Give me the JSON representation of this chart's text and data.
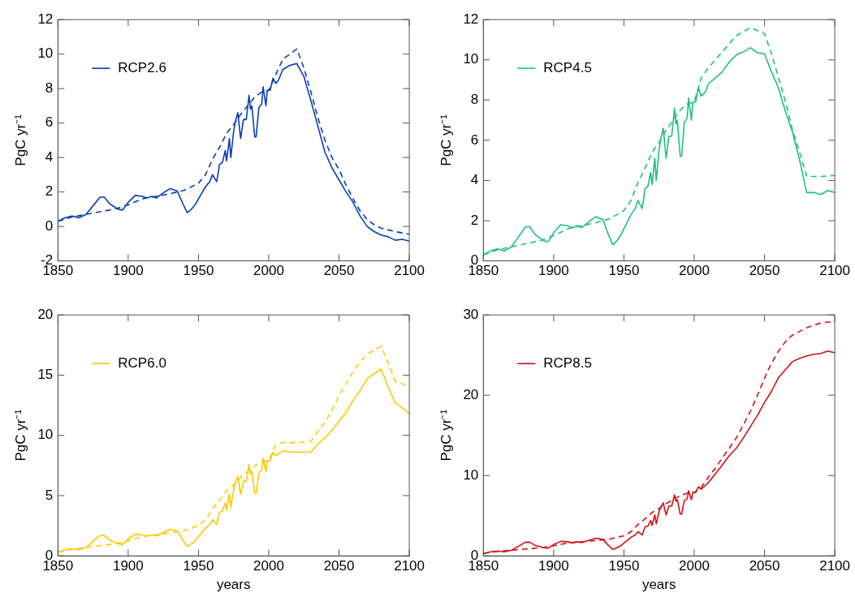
{
  "chart_data": [
    {
      "type": "line",
      "ylabel": "PgC yr⁻¹",
      "xlim": [
        1850,
        2100
      ],
      "xticks": [
        1850,
        1900,
        1950,
        2000,
        2050,
        2100
      ],
      "ylim": [
        -2,
        12
      ],
      "yticks": [
        -2,
        0,
        2,
        4,
        6,
        8,
        10,
        12
      ],
      "legend": "top left",
      "series": [
        {
          "name": "RCP2.6",
          "color": "#0a3cb4",
          "line_style": "solid",
          "x": [
            1850,
            1855,
            1860,
            1865,
            1870,
            1875,
            1880,
            1883,
            1887,
            1893,
            1896,
            1900,
            1905,
            1910,
            1913,
            1917,
            1920,
            1925,
            1928,
            1930,
            1935,
            1939,
            1942,
            1945,
            1948,
            1950,
            1955,
            1958,
            1960,
            1963,
            1965,
            1967,
            1969,
            1970,
            1972,
            1973,
            1975,
            1976,
            1978,
            1980,
            1982,
            1984,
            1986,
            1987,
            1988,
            1990,
            1991,
            1993,
            1995,
            1996,
            1998,
            1999,
            2001,
            2003,
            2005,
            2007,
            2010,
            2015,
            2020,
            2025,
            2030,
            2035,
            2040,
            2045,
            2050,
            2055,
            2060,
            2065,
            2070,
            2075,
            2080,
            2085,
            2090,
            2095,
            2100
          ],
          "values": [
            0.3,
            0.5,
            0.6,
            0.5,
            0.7,
            1.2,
            1.7,
            1.7,
            1.3,
            1.0,
            0.95,
            1.4,
            1.8,
            1.75,
            1.65,
            1.75,
            1.65,
            1.95,
            2.1,
            2.2,
            2.05,
            1.3,
            0.8,
            1.0,
            1.3,
            1.6,
            2.3,
            2.6,
            3.0,
            2.6,
            3.6,
            3.7,
            4.4,
            3.8,
            5.1,
            4.0,
            5.5,
            6.0,
            6.6,
            5.1,
            6.2,
            6.2,
            7.6,
            6.8,
            7.0,
            5.2,
            5.2,
            6.9,
            7.1,
            8.1,
            7.0,
            7.9,
            7.9,
            8.6,
            8.3,
            8.5,
            9.1,
            9.35,
            9.45,
            8.7,
            7.3,
            5.8,
            4.3,
            3.4,
            2.7,
            2.0,
            1.4,
            0.6,
            0.0,
            -0.3,
            -0.5,
            -0.6,
            -0.8,
            -0.75,
            -0.85
          ]
        },
        {
          "color": "#0a3cb4",
          "line_style": "dashed",
          "x": [
            1850,
            1860,
            1870,
            1880,
            1890,
            1900,
            1910,
            1920,
            1930,
            1940,
            1950,
            1955,
            1960,
            1965,
            1970,
            1975,
            1980,
            1985,
            1990,
            1995,
            2000,
            2005,
            2010,
            2015,
            2020,
            2025,
            2030,
            2035,
            2040,
            2045,
            2050,
            2055,
            2060,
            2065,
            2070,
            2075,
            2080,
            2090,
            2100
          ],
          "values": [
            0.3,
            0.55,
            0.7,
            0.85,
            1.0,
            1.25,
            1.6,
            1.75,
            1.9,
            2.1,
            2.5,
            3.0,
            3.9,
            4.6,
            5.4,
            5.9,
            6.5,
            7.0,
            7.5,
            7.8,
            7.9,
            8.8,
            9.7,
            10.0,
            10.3,
            9.2,
            7.8,
            6.3,
            5.0,
            4.0,
            3.3,
            2.4,
            1.6,
            0.9,
            0.4,
            0.1,
            -0.1,
            -0.3,
            -0.45
          ]
        }
      ]
    },
    {
      "type": "line",
      "ylabel": "PgC yr⁻¹",
      "xlim": [
        1850,
        2100
      ],
      "xticks": [
        1850,
        1900,
        1950,
        2000,
        2050,
        2100
      ],
      "ylim": [
        0,
        12
      ],
      "yticks": [
        0,
        2,
        4,
        6,
        8,
        10,
        12
      ],
      "legend": "top left",
      "series": [
        {
          "name": "RCP4.5",
          "color": "#1fbf80",
          "line_style": "solid",
          "x": [
            1850,
            1855,
            1860,
            1865,
            1870,
            1875,
            1880,
            1883,
            1887,
            1893,
            1896,
            1900,
            1905,
            1910,
            1913,
            1917,
            1920,
            1925,
            1928,
            1930,
            1935,
            1939,
            1942,
            1945,
            1948,
            1950,
            1955,
            1958,
            1960,
            1963,
            1965,
            1967,
            1969,
            1970,
            1972,
            1973,
            1975,
            1976,
            1978,
            1980,
            1982,
            1984,
            1986,
            1987,
            1988,
            1990,
            1991,
            1993,
            1995,
            1996,
            1998,
            1999,
            2001,
            2003,
            2005,
            2008,
            2010,
            2015,
            2020,
            2025,
            2030,
            2035,
            2040,
            2045,
            2050,
            2055,
            2060,
            2065,
            2070,
            2075,
            2080,
            2085,
            2090,
            2095,
            2100
          ],
          "values": [
            0.3,
            0.5,
            0.6,
            0.5,
            0.7,
            1.2,
            1.7,
            1.7,
            1.3,
            1.0,
            0.95,
            1.4,
            1.8,
            1.75,
            1.65,
            1.75,
            1.65,
            1.95,
            2.1,
            2.2,
            2.05,
            1.3,
            0.8,
            1.0,
            1.3,
            1.6,
            2.3,
            2.6,
            3.0,
            2.6,
            3.6,
            3.7,
            4.4,
            3.8,
            5.1,
            4.0,
            5.5,
            6.0,
            6.6,
            5.1,
            6.2,
            6.2,
            7.6,
            6.8,
            7.0,
            5.2,
            5.2,
            6.9,
            7.1,
            8.1,
            7.0,
            7.9,
            7.9,
            8.6,
            8.2,
            8.4,
            8.8,
            9.1,
            9.4,
            9.9,
            10.25,
            10.4,
            10.6,
            10.35,
            10.3,
            9.4,
            8.6,
            7.4,
            6.4,
            5.0,
            3.4,
            3.4,
            3.3,
            3.5,
            3.4
          ]
        },
        {
          "color": "#1fbf80",
          "line_style": "dashed",
          "x": [
            1850,
            1860,
            1870,
            1880,
            1890,
            1900,
            1910,
            1920,
            1930,
            1940,
            1950,
            1955,
            1960,
            1965,
            1970,
            1975,
            1980,
            1985,
            1990,
            1995,
            2000,
            2005,
            2010,
            2020,
            2030,
            2040,
            2050,
            2055,
            2060,
            2065,
            2070,
            2075,
            2080,
            2090,
            2100
          ],
          "values": [
            0.3,
            0.55,
            0.7,
            0.85,
            1.0,
            1.25,
            1.6,
            1.75,
            1.9,
            2.1,
            2.5,
            3.0,
            3.9,
            4.6,
            5.4,
            5.9,
            6.5,
            7.0,
            7.5,
            7.8,
            7.9,
            9.1,
            9.6,
            10.4,
            11.2,
            11.6,
            11.3,
            10.3,
            9.1,
            7.9,
            6.5,
            5.4,
            4.2,
            4.2,
            4.25
          ]
        }
      ]
    },
    {
      "type": "line",
      "xlabel": "years",
      "ylabel": "PgC yr⁻¹",
      "xlim": [
        1850,
        2100
      ],
      "xticks": [
        1850,
        1900,
        1950,
        2000,
        2050,
        2100
      ],
      "ylim": [
        0,
        20
      ],
      "yticks": [
        0,
        5,
        10,
        15,
        20
      ],
      "legend": "top left",
      "series": [
        {
          "name": "RCP6.0",
          "color": "#ffc800",
          "line_style": "solid",
          "x": [
            1850,
            1855,
            1860,
            1865,
            1870,
            1875,
            1880,
            1883,
            1887,
            1893,
            1896,
            1900,
            1905,
            1910,
            1913,
            1917,
            1920,
            1925,
            1928,
            1930,
            1935,
            1939,
            1942,
            1945,
            1948,
            1950,
            1955,
            1958,
            1960,
            1963,
            1965,
            1967,
            1969,
            1970,
            1972,
            1973,
            1975,
            1976,
            1978,
            1980,
            1982,
            1984,
            1986,
            1987,
            1988,
            1990,
            1991,
            1993,
            1995,
            1996,
            1998,
            1999,
            2001,
            2003,
            2005,
            2010,
            2020,
            2025,
            2030,
            2035,
            2040,
            2045,
            2050,
            2055,
            2060,
            2065,
            2070,
            2075,
            2080,
            2085,
            2090,
            2095,
            2100
          ],
          "values": [
            0.3,
            0.5,
            0.6,
            0.5,
            0.7,
            1.2,
            1.7,
            1.7,
            1.3,
            1.0,
            0.95,
            1.4,
            1.8,
            1.75,
            1.65,
            1.75,
            1.65,
            1.95,
            2.1,
            2.2,
            2.05,
            1.3,
            0.8,
            1.0,
            1.3,
            1.6,
            2.3,
            2.6,
            3.0,
            2.6,
            3.6,
            3.7,
            4.4,
            3.8,
            5.1,
            4.0,
            5.5,
            6.0,
            6.6,
            5.1,
            6.2,
            6.2,
            7.6,
            6.8,
            7.0,
            5.2,
            5.2,
            6.9,
            7.1,
            8.1,
            7.0,
            7.9,
            7.9,
            8.6,
            8.3,
            8.7,
            8.6,
            8.6,
            8.6,
            9.3,
            9.8,
            10.4,
            11.2,
            11.9,
            12.9,
            13.7,
            14.7,
            15.1,
            15.5,
            14.0,
            12.7,
            12.3,
            11.8
          ]
        },
        {
          "color": "#ffc800",
          "line_style": "dashed",
          "x": [
            1850,
            1860,
            1870,
            1880,
            1890,
            1900,
            1910,
            1920,
            1930,
            1940,
            1950,
            1955,
            1960,
            1965,
            1970,
            1975,
            1980,
            1985,
            1990,
            1995,
            2000,
            2005,
            2010,
            2020,
            2030,
            2035,
            2040,
            2045,
            2050,
            2055,
            2060,
            2065,
            2070,
            2075,
            2080,
            2085,
            2090,
            2095,
            2100
          ],
          "values": [
            0.3,
            0.55,
            0.7,
            0.85,
            1.0,
            1.25,
            1.6,
            1.75,
            1.9,
            2.1,
            2.5,
            3.0,
            3.9,
            4.6,
            5.4,
            5.9,
            6.5,
            7.0,
            7.5,
            7.8,
            7.9,
            9.2,
            9.4,
            9.4,
            9.5,
            10.3,
            11.1,
            12.1,
            13.3,
            14.3,
            15.3,
            16.1,
            16.7,
            17.1,
            17.4,
            16.0,
            14.5,
            14.3,
            14.0
          ]
        }
      ]
    },
    {
      "type": "line",
      "xlabel": "years",
      "ylabel": "PgC yr⁻¹",
      "xlim": [
        1850,
        2100
      ],
      "xticks": [
        1850,
        1900,
        1950,
        2000,
        2050,
        2100
      ],
      "ylim": [
        0,
        30
      ],
      "yticks": [
        0,
        10,
        20,
        30
      ],
      "legend": "top left",
      "series": [
        {
          "name": "RCP8.5",
          "color": "#d40f14",
          "line_style": "solid",
          "x": [
            1850,
            1855,
            1860,
            1865,
            1870,
            1875,
            1880,
            1883,
            1887,
            1893,
            1896,
            1900,
            1905,
            1910,
            1913,
            1917,
            1920,
            1925,
            1928,
            1930,
            1935,
            1939,
            1942,
            1945,
            1948,
            1950,
            1955,
            1958,
            1960,
            1963,
            1965,
            1967,
            1969,
            1970,
            1972,
            1973,
            1975,
            1976,
            1978,
            1980,
            1982,
            1984,
            1986,
            1987,
            1988,
            1990,
            1991,
            1993,
            1995,
            1996,
            1998,
            1999,
            2001,
            2003,
            2005,
            2010,
            2015,
            2020,
            2025,
            2030,
            2035,
            2040,
            2045,
            2050,
            2055,
            2060,
            2065,
            2070,
            2075,
            2080,
            2085,
            2090,
            2095,
            2100
          ],
          "values": [
            0.3,
            0.5,
            0.6,
            0.5,
            0.7,
            1.2,
            1.7,
            1.7,
            1.3,
            1.0,
            0.95,
            1.4,
            1.8,
            1.75,
            1.65,
            1.75,
            1.65,
            1.95,
            2.1,
            2.2,
            2.05,
            1.3,
            0.8,
            1.0,
            1.3,
            1.6,
            2.3,
            2.6,
            3.0,
            2.6,
            3.6,
            3.7,
            4.4,
            3.8,
            5.1,
            4.0,
            5.5,
            6.0,
            6.6,
            5.1,
            6.2,
            6.2,
            7.6,
            6.8,
            7.0,
            5.2,
            5.2,
            6.9,
            7.1,
            8.1,
            7.0,
            7.9,
            7.9,
            8.6,
            8.3,
            9.1,
            10.2,
            11.3,
            12.5,
            13.4,
            14.7,
            16.1,
            17.5,
            19.1,
            20.5,
            22.2,
            23.2,
            24.2,
            24.6,
            24.9,
            25.1,
            25.2,
            25.5,
            25.3
          ]
        },
        {
          "color": "#d40f14",
          "line_style": "dashed",
          "x": [
            1850,
            1860,
            1870,
            1880,
            1890,
            1900,
            1910,
            1920,
            1930,
            1940,
            1950,
            1955,
            1960,
            1965,
            1970,
            1975,
            1980,
            1985,
            1990,
            1995,
            2000,
            2005,
            2010,
            2015,
            2020,
            2025,
            2030,
            2035,
            2040,
            2045,
            2050,
            2055,
            2060,
            2065,
            2070,
            2080,
            2090,
            2100
          ],
          "values": [
            0.3,
            0.55,
            0.7,
            0.85,
            1.0,
            1.25,
            1.6,
            1.75,
            1.9,
            2.1,
            2.5,
            3.0,
            3.9,
            4.6,
            5.4,
            5.9,
            6.5,
            7.0,
            7.5,
            7.8,
            7.9,
            8.5,
            9.8,
            10.9,
            12.2,
            13.4,
            14.7,
            16.3,
            18.0,
            20.0,
            22.1,
            24.0,
            25.5,
            26.7,
            27.5,
            28.4,
            29.0,
            29.2
          ]
        }
      ]
    }
  ]
}
